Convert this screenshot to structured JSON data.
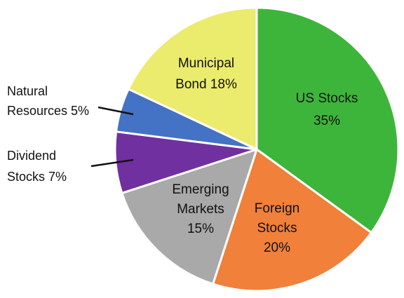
{
  "chart_data": {
    "type": "pie",
    "slices": [
      {
        "label": "US Stocks",
        "label_lines": [
          "US Stocks",
          "35%"
        ],
        "value": 35,
        "color": "#3db53a"
      },
      {
        "label": "Foreign Stocks",
        "label_lines": [
          "Foreign",
          "Stocks",
          "20%"
        ],
        "value": 20,
        "color": "#f0803a"
      },
      {
        "label": "Emerging Markets",
        "label_lines": [
          "Emerging",
          "Markets",
          "15%"
        ],
        "value": 15,
        "color": "#a9a9a9"
      },
      {
        "label": "Dividend Stocks",
        "label_lines": [
          "Dividend",
          "Stocks  7%"
        ],
        "value": 7,
        "color": "#7030a0"
      },
      {
        "label": "Natural Resources",
        "label_lines": [
          "Natural",
          "Resources 5%"
        ],
        "value": 5,
        "color": "#4472c4"
      },
      {
        "label": "Municipal Bond",
        "label_lines": [
          "Municipal",
          "Bond 18%"
        ],
        "value": 18,
        "color": "#ebeb6e"
      }
    ],
    "start_angle_deg": 0,
    "direction": "clockwise",
    "slice_border_color": "#ffffff"
  }
}
